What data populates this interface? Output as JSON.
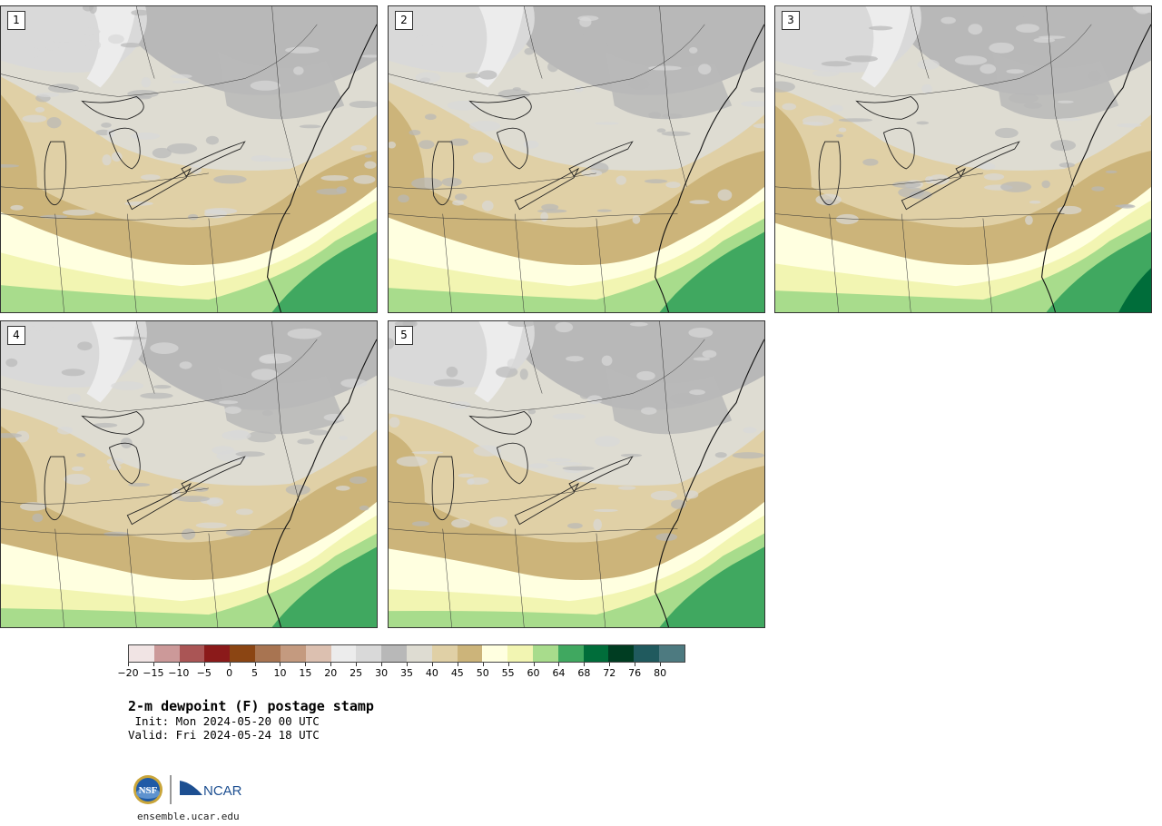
{
  "panels": [
    {
      "label": "1",
      "variant": 1
    },
    {
      "label": "2",
      "variant": 2
    },
    {
      "label": "3",
      "variant": 3
    },
    {
      "label": "4",
      "variant": 4
    },
    {
      "label": "5",
      "variant": 5
    }
  ],
  "colorbar": {
    "colors": [
      "#f1e4e4",
      "#cc9999",
      "#aa5555",
      "#8b1a1a",
      "#8b4513",
      "#a87451",
      "#c49a7f",
      "#dcc0b0",
      "#ececec",
      "#d9d9d9",
      "#b8b8b8",
      "#dedcd2",
      "#e0d0a6",
      "#ccb47a",
      "#ffffe0",
      "#f2f5b2",
      "#a8dc8c",
      "#40a860",
      "#006d3a",
      "#003d22",
      "#205a5e",
      "#4d7a80"
    ],
    "tick_labels": [
      "−20",
      "−15",
      "−10",
      "−5",
      "0",
      "5",
      "10",
      "15",
      "20",
      "25",
      "30",
      "35",
      "40",
      "45",
      "50",
      "55",
      "60",
      "64",
      "68",
      "72",
      "76",
      "80"
    ]
  },
  "title": "2-m dewpoint (F) postage stamp",
  "init": " Init: Mon 2024-05-20 00 UTC",
  "valid": "Valid: Fri 2024-05-24 18 UTC",
  "logos": {
    "nsf_text": "NSF",
    "ncar_text": "NCAR"
  },
  "url": "ensemble.ucar.edu"
}
